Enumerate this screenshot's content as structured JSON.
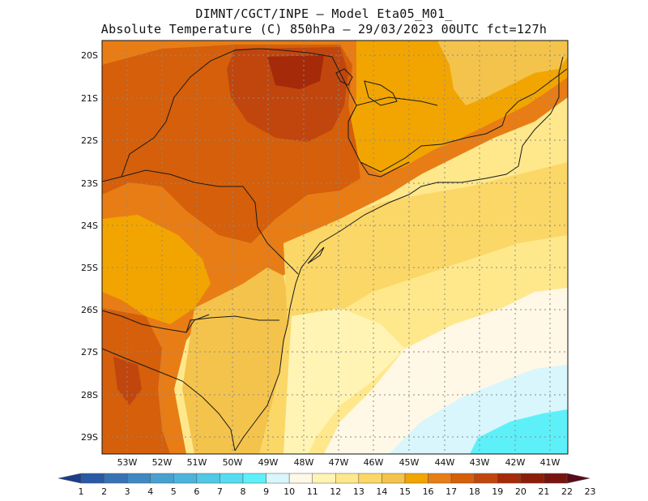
{
  "title": {
    "line1": "DIMNT/CGCT/INPE –  Model Eta05_M01_",
    "line2": "Absolute Temperature (C) 850hPa –  29/03/2023 00UTC fct=127h"
  },
  "map": {
    "lat_labels": [
      "20S",
      "21S",
      "22S",
      "23S",
      "24S",
      "25S",
      "26S",
      "27S",
      "28S",
      "29S"
    ],
    "lon_labels": [
      "53W",
      "52W",
      "51W",
      "50W",
      "49W",
      "48W",
      "47W",
      "46W",
      "45W",
      "44W",
      "43W",
      "42W",
      "41W"
    ],
    "gridlines": "dotted"
  },
  "colorbar": {
    "labels": [
      "1",
      "2",
      "3",
      "4",
      "5",
      "6",
      "7",
      "8",
      "9",
      "10",
      "11",
      "12",
      "13",
      "14",
      "15",
      "16",
      "17",
      "18",
      "19",
      "20",
      "21",
      "22",
      "23"
    ],
    "colors": [
      "#1e3c8c",
      "#2a5aa5",
      "#3773b4",
      "#3f88c2",
      "#48a0d0",
      "#4cb4db",
      "#50c8e6",
      "#55dcf0",
      "#5ef0f8",
      "#d8f6fc",
      "#fff8e6",
      "#fff4b4",
      "#ffe88c",
      "#fbd767",
      "#f4c34b",
      "#f2a500",
      "#e87d16",
      "#d55f0a",
      "#c0460e",
      "#a52a0a",
      "#8c1e08",
      "#781410",
      "#5a0a1a"
    ]
  }
}
